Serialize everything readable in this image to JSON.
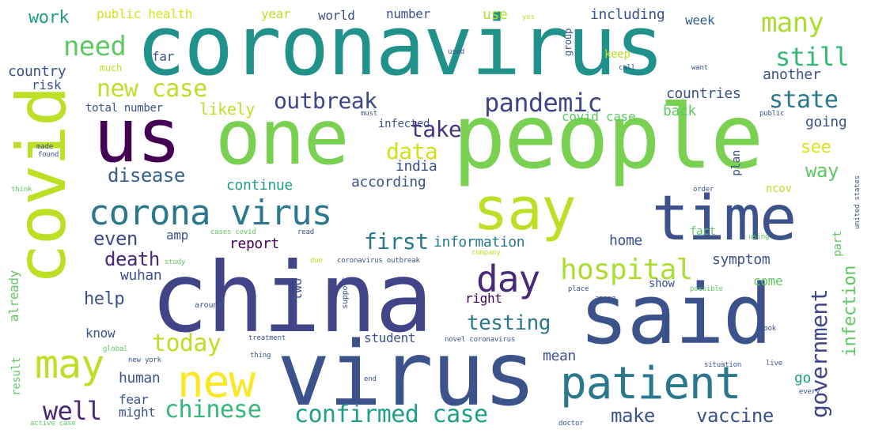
{
  "words": [
    {
      "text": "coronavirus",
      "color": "#21918c"
    },
    {
      "text": "people",
      "color": "#7ad151"
    },
    {
      "text": "china",
      "color": "#414487"
    },
    {
      "text": "virus",
      "color": "#3b528b"
    },
    {
      "text": "said",
      "color": "#3b528b"
    },
    {
      "text": "one",
      "color": "#7ad151"
    },
    {
      "text": "us",
      "color": "#440154"
    },
    {
      "text": "say",
      "color": "#bddf26"
    },
    {
      "text": "time",
      "color": "#3b528b"
    },
    {
      "text": "covid",
      "color": "#bddf26"
    },
    {
      "text": "corona virus",
      "color": "#2a788e"
    },
    {
      "text": "patient",
      "color": "#2a788e"
    },
    {
      "text": "new",
      "color": "#fde725"
    },
    {
      "text": "may",
      "color": "#bddf26"
    },
    {
      "text": "day",
      "color": "#482878"
    },
    {
      "text": "hospital",
      "color": "#addc30"
    },
    {
      "text": "government",
      "color": "#404688"
    },
    {
      "text": "pandemic",
      "color": "#414487"
    },
    {
      "text": "outbreak",
      "color": "#414487"
    },
    {
      "text": "confirmed case",
      "color": "#1f9e89"
    },
    {
      "text": "chinese",
      "color": "#35b779"
    },
    {
      "text": "need",
      "color": "#5ec962"
    },
    {
      "text": "many",
      "color": "#addc30"
    },
    {
      "text": "new case",
      "color": "#bddf26"
    },
    {
      "text": "still",
      "color": "#35b779"
    },
    {
      "text": "state",
      "color": "#2a788e"
    },
    {
      "text": "well",
      "color": "#482878"
    },
    {
      "text": "today",
      "color": "#bddf26"
    },
    {
      "text": "first",
      "color": "#2a788e"
    },
    {
      "text": "take",
      "color": "#46337e"
    },
    {
      "text": "data",
      "color": "#d0e11c"
    },
    {
      "text": "even",
      "color": "#3e4989"
    },
    {
      "text": "disease",
      "color": "#355f8d"
    },
    {
      "text": "testing",
      "color": "#2a788e"
    },
    {
      "text": "make",
      "color": "#3b528b"
    },
    {
      "text": "vaccine",
      "color": "#3b528b"
    },
    {
      "text": "infection",
      "color": "#5ec962"
    },
    {
      "text": "death",
      "color": "#482878"
    },
    {
      "text": "help",
      "color": "#3b528b"
    },
    {
      "text": "see",
      "color": "#dde318"
    },
    {
      "text": "way",
      "color": "#5ec962"
    },
    {
      "text": "work",
      "color": "#1f9e89"
    },
    {
      "text": "public health",
      "color": "#d8e219"
    },
    {
      "text": "year",
      "color": "#bddf26"
    },
    {
      "text": "world",
      "color": "#3b528b"
    },
    {
      "text": "number",
      "color": "#3b528b"
    },
    {
      "text": "use",
      "color": "#b5de2b"
    },
    {
      "text": "including",
      "color": "#3b528b"
    },
    {
      "text": "week",
      "color": "#355f8d"
    },
    {
      "text": "country",
      "color": "#3b528b"
    },
    {
      "text": "risk",
      "color": "#3b528b"
    },
    {
      "text": "much",
      "color": "#bddf26"
    },
    {
      "text": "far",
      "color": "#3b528b"
    },
    {
      "text": "likely",
      "color": "#bddf26"
    },
    {
      "text": "total number",
      "color": "#3b528b"
    },
    {
      "text": "countries",
      "color": "#3b528b"
    },
    {
      "text": "another",
      "color": "#3b528b"
    },
    {
      "text": "back",
      "color": "#5ec962"
    },
    {
      "text": "covid case",
      "color": "#5ec962"
    },
    {
      "text": "going",
      "color": "#3b528b"
    },
    {
      "text": "infected",
      "color": "#3b528b"
    },
    {
      "text": "continue",
      "color": "#1f9e89"
    },
    {
      "text": "according",
      "color": "#3b528b"
    },
    {
      "text": "india",
      "color": "#3b528b"
    },
    {
      "text": "amp",
      "color": "#3b528b"
    },
    {
      "text": "information",
      "color": "#2a788e"
    },
    {
      "text": "report",
      "color": "#440154"
    },
    {
      "text": "home",
      "color": "#3b528b"
    },
    {
      "text": "symptom",
      "color": "#3b528b"
    },
    {
      "text": "wuhan",
      "color": "#3b528b"
    },
    {
      "text": "already",
      "color": "#5ec962"
    },
    {
      "text": "two",
      "color": "#3b528b"
    },
    {
      "text": "right",
      "color": "#440154"
    },
    {
      "text": "come",
      "color": "#5ec962"
    },
    {
      "text": "show",
      "color": "#3b528b"
    },
    {
      "text": "know",
      "color": "#3b528b"
    },
    {
      "text": "student",
      "color": "#3b528b"
    },
    {
      "text": "mean",
      "color": "#3b528b"
    },
    {
      "text": "human",
      "color": "#3b528b"
    },
    {
      "text": "fear",
      "color": "#3b528b"
    },
    {
      "text": "might",
      "color": "#3b528b"
    },
    {
      "text": "go",
      "color": "#1f9e89"
    },
    {
      "text": "result",
      "color": "#5ec962"
    },
    {
      "text": "fact",
      "color": "#5ec962"
    },
    {
      "text": "part",
      "color": "#5ec962"
    },
    {
      "text": "ncov",
      "color": "#bddf26"
    },
    {
      "text": "plan",
      "color": "#3b528b"
    },
    {
      "text": "group",
      "color": "#3b528b"
    },
    {
      "text": "keep",
      "color": "#bddf26"
    },
    {
      "text": "used",
      "color": "#3b528b"
    },
    {
      "text": "call",
      "color": "#3b528b"
    },
    {
      "text": "public",
      "color": "#3b528b"
    },
    {
      "text": "must",
      "color": "#3b528b"
    },
    {
      "text": "made",
      "color": "#3b528b"
    },
    {
      "text": "found",
      "color": "#3b528b"
    },
    {
      "text": "think",
      "color": "#5ec962"
    },
    {
      "text": "order",
      "color": "#3b528b"
    },
    {
      "text": "united states",
      "color": "#3b528b"
    },
    {
      "text": "cases covid",
      "color": "#5ec962"
    },
    {
      "text": "read",
      "color": "#3b528b"
    },
    {
      "text": "using",
      "color": "#5ec962"
    },
    {
      "text": "study",
      "color": "#5ec962"
    },
    {
      "text": "due",
      "color": "#bddf26"
    },
    {
      "text": "coronavirus outbreak",
      "color": "#3b528b"
    },
    {
      "text": "around",
      "color": "#3b528b"
    },
    {
      "text": "support",
      "color": "#3b528b"
    },
    {
      "text": "possible",
      "color": "#5ec962"
    },
    {
      "text": "place",
      "color": "#3b528b"
    },
    {
      "text": "among",
      "color": "#3b528b"
    },
    {
      "text": "global",
      "color": "#5ec962"
    },
    {
      "text": "treatment",
      "color": "#3b528b"
    },
    {
      "text": "novel coronavirus",
      "color": "#3b528b"
    },
    {
      "text": "look",
      "color": "#3b528b"
    },
    {
      "text": "situation",
      "color": "#3b528b"
    },
    {
      "text": "live",
      "color": "#3b528b"
    },
    {
      "text": "thing",
      "color": "#3b528b"
    },
    {
      "text": "end",
      "color": "#3b528b"
    },
    {
      "text": "every",
      "color": "#3b528b"
    },
    {
      "text": "doctor",
      "color": "#3b528b"
    },
    {
      "text": "active case",
      "color": "#5ec962"
    },
    {
      "text": "want",
      "color": "#3b528b"
    },
    {
      "text": "company",
      "color": "#bddf26"
    },
    {
      "text": "new york",
      "color": "#3b528b"
    },
    {
      "text": "yes",
      "color": "#bddf26"
    }
  ]
}
